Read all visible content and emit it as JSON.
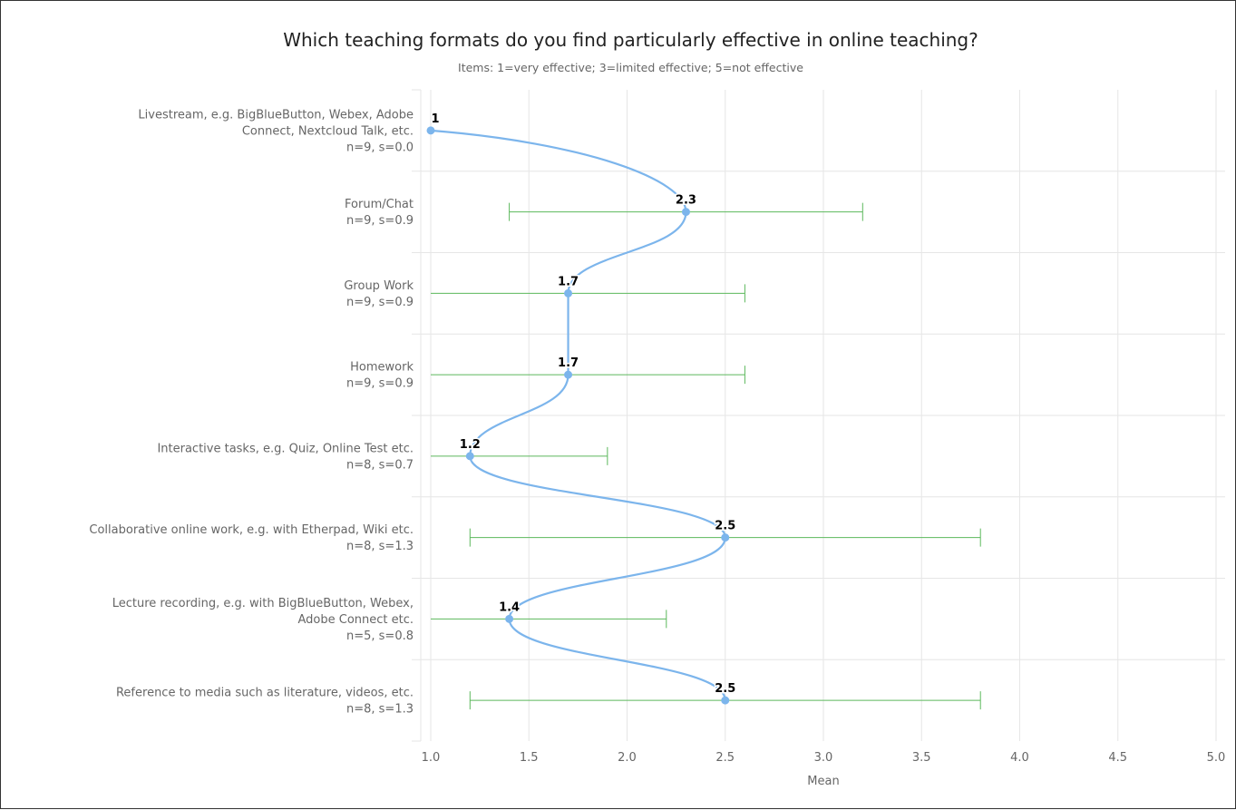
{
  "chart_data": {
    "type": "line",
    "title": "Which teaching formats do you find particularly effective in online teaching?",
    "subtitle": "Items: 1=very effective; 3=limited effective; 5=not effective",
    "xlabel": "Mean",
    "xlim": [
      1.0,
      5.0
    ],
    "x_ticks": [
      "1.0",
      "1.5",
      "2.0",
      "2.5",
      "3.0",
      "3.5",
      "4.0",
      "4.5",
      "5.0"
    ],
    "grid": true,
    "colors": {
      "line": "#7cb5ec",
      "error_bar": "#5cb85c",
      "grid": "#e6e6e6"
    },
    "categories": [
      {
        "lines": [
          "Livestream, e.g. BigBlueButton, Webex, Adobe",
          "Connect, Nextcloud Talk, etc.",
          "n=9, s=0.0"
        ],
        "mean": 1.0,
        "label": "1",
        "error_low": 1.0,
        "error_high": 1.0
      },
      {
        "lines": [
          "Forum/Chat",
          "n=9, s=0.9"
        ],
        "mean": 2.3,
        "label": "2.3",
        "error_low": 1.4,
        "error_high": 3.2
      },
      {
        "lines": [
          "Group Work",
          "n=9, s=0.9"
        ],
        "mean": 1.7,
        "label": "1.7",
        "error_low": 0.8,
        "error_high": 2.6
      },
      {
        "lines": [
          "Homework",
          "n=9, s=0.9"
        ],
        "mean": 1.7,
        "label": "1.7",
        "error_low": 0.8,
        "error_high": 2.6
      },
      {
        "lines": [
          "Interactive tasks, e.g. Quiz, Online Test etc.",
          "n=8, s=0.7"
        ],
        "mean": 1.2,
        "label": "1.2",
        "error_low": 0.5,
        "error_high": 1.9
      },
      {
        "lines": [
          "Collaborative online work, e.g. with Etherpad, Wiki etc.",
          "n=8, s=1.3"
        ],
        "mean": 2.5,
        "label": "2.5",
        "error_low": 1.2,
        "error_high": 3.8
      },
      {
        "lines": [
          "Lecture recording, e.g. with BigBlueButton, Webex,",
          "Adobe Connect etc.",
          "n=5, s=0.8"
        ],
        "mean": 1.4,
        "label": "1.4",
        "error_low": 0.6,
        "error_high": 2.2
      },
      {
        "lines": [
          "Reference to media such as literature, videos, etc.",
          "n=8, s=1.3"
        ],
        "mean": 2.5,
        "label": "2.5",
        "error_low": 1.2,
        "error_high": 3.8
      }
    ]
  }
}
